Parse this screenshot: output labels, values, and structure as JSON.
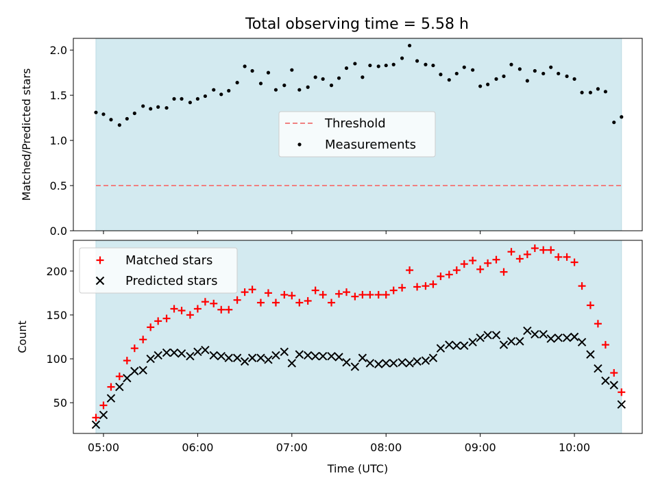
{
  "title": "Total observing time = 5.58 h",
  "colors": {
    "span_fill": "#d3eaf0",
    "threshold": "#f08080",
    "measurement": "#000000",
    "matched": "#ff0000",
    "predicted": "#000000"
  },
  "chart_data": [
    {
      "type": "scatter",
      "ylabel": "Matched/Predicted stars",
      "xlim": [
        4.68,
        10.72
      ],
      "ylim": [
        0,
        2.13
      ],
      "yticks": [
        0.0,
        0.5,
        1.0,
        1.5,
        2.0
      ],
      "ytick_labels": [
        "0.0",
        "0.5",
        "1.0",
        "1.5",
        "2.0"
      ],
      "observing_window": [
        4.92,
        10.5
      ],
      "legend": {
        "placement": "center",
        "entries": [
          "Threshold",
          "Measurements"
        ]
      },
      "threshold": {
        "name": "Threshold",
        "y": 0.5,
        "style": "dashed"
      },
      "series": [
        {
          "name": "Measurements",
          "marker": "dot",
          "x": [
            4.92,
            5.0,
            5.08,
            5.17,
            5.25,
            5.33,
            5.42,
            5.5,
            5.58,
            5.67,
            5.75,
            5.83,
            5.92,
            6.0,
            6.08,
            6.17,
            6.25,
            6.33,
            6.42,
            6.5,
            6.58,
            6.67,
            6.75,
            6.83,
            6.92,
            7.0,
            7.08,
            7.17,
            7.25,
            7.33,
            7.42,
            7.5,
            7.58,
            7.67,
            7.75,
            7.83,
            7.92,
            8.0,
            8.08,
            8.17,
            8.25,
            8.33,
            8.42,
            8.5,
            8.58,
            8.67,
            8.75,
            8.83,
            8.92,
            9.0,
            9.08,
            9.17,
            9.25,
            9.33,
            9.42,
            9.5,
            9.58,
            9.67,
            9.75,
            9.83,
            9.92,
            10.0,
            10.08,
            10.17,
            10.25,
            10.33,
            10.42,
            10.5
          ],
          "values": [
            1.31,
            1.29,
            1.23,
            1.17,
            1.24,
            1.3,
            1.38,
            1.35,
            1.37,
            1.36,
            1.46,
            1.46,
            1.42,
            1.46,
            1.49,
            1.56,
            1.51,
            1.55,
            1.64,
            1.82,
            1.77,
            1.63,
            1.75,
            1.56,
            1.61,
            1.78,
            1.56,
            1.59,
            1.7,
            1.68,
            1.61,
            1.69,
            1.8,
            1.85,
            1.7,
            1.83,
            1.82,
            1.83,
            1.84,
            1.91,
            2.05,
            1.88,
            1.84,
            1.83,
            1.73,
            1.67,
            1.74,
            1.81,
            1.78,
            1.6,
            1.62,
            1.68,
            1.71,
            1.84,
            1.79,
            1.66,
            1.77,
            1.74,
            1.81,
            1.74,
            1.71,
            1.68,
            1.53,
            1.53,
            1.57,
            1.54,
            1.2,
            1.26
          ]
        }
      ]
    },
    {
      "type": "scatter",
      "ylabel": "Count",
      "xlabel": "Time (UTC)",
      "xlim": [
        4.68,
        10.72
      ],
      "ylim": [
        15,
        235
      ],
      "yticks": [
        50,
        100,
        150,
        200
      ],
      "ytick_labels": [
        "50",
        "100",
        "150",
        "200"
      ],
      "xticks": [
        5,
        6,
        7,
        8,
        9,
        10
      ],
      "xtick_labels": [
        "05:00",
        "06:00",
        "07:00",
        "08:00",
        "09:00",
        "10:00"
      ],
      "observing_window": [
        4.92,
        10.5
      ],
      "legend": {
        "placement": "upper left",
        "entries": [
          "Matched stars",
          "Predicted stars"
        ]
      },
      "series": [
        {
          "name": "Matched stars",
          "marker": "plus",
          "x": [
            4.92,
            5.0,
            5.08,
            5.17,
            5.25,
            5.33,
            5.42,
            5.5,
            5.58,
            5.67,
            5.75,
            5.83,
            5.92,
            6.0,
            6.08,
            6.17,
            6.25,
            6.33,
            6.42,
            6.5,
            6.58,
            6.67,
            6.75,
            6.83,
            6.92,
            7.0,
            7.08,
            7.17,
            7.25,
            7.33,
            7.42,
            7.5,
            7.58,
            7.67,
            7.75,
            7.83,
            7.92,
            8.0,
            8.08,
            8.17,
            8.25,
            8.33,
            8.42,
            8.5,
            8.58,
            8.67,
            8.75,
            8.83,
            8.92,
            9.0,
            9.08,
            9.17,
            9.25,
            9.33,
            9.42,
            9.5,
            9.58,
            9.67,
            9.75,
            9.83,
            9.92,
            10.0,
            10.08,
            10.17,
            10.25,
            10.33,
            10.42,
            10.5
          ],
          "values": [
            33,
            47,
            68,
            80,
            98,
            112,
            122,
            136,
            143,
            146,
            157,
            155,
            150,
            157,
            165,
            163,
            156,
            156,
            167,
            176,
            179,
            164,
            175,
            164,
            173,
            172,
            164,
            166,
            178,
            173,
            164,
            174,
            176,
            171,
            173,
            173,
            173,
            173,
            178,
            181,
            201,
            182,
            183,
            185,
            194,
            196,
            201,
            208,
            212,
            202,
            209,
            213,
            199,
            222,
            214,
            219,
            226,
            224,
            224,
            216,
            216,
            210,
            183,
            161,
            140,
            116,
            84,
            62
          ]
        },
        {
          "name": "Predicted stars",
          "marker": "x",
          "x": [
            4.92,
            5.0,
            5.08,
            5.17,
            5.25,
            5.33,
            5.42,
            5.5,
            5.58,
            5.67,
            5.75,
            5.83,
            5.92,
            6.0,
            6.08,
            6.17,
            6.25,
            6.33,
            6.42,
            6.5,
            6.58,
            6.67,
            6.75,
            6.83,
            6.92,
            7.0,
            7.08,
            7.17,
            7.25,
            7.33,
            7.42,
            7.5,
            7.58,
            7.67,
            7.75,
            7.83,
            7.92,
            8.0,
            8.08,
            8.17,
            8.25,
            8.33,
            8.42,
            8.5,
            8.58,
            8.67,
            8.75,
            8.83,
            8.92,
            9.0,
            9.08,
            9.17,
            9.25,
            9.33,
            9.42,
            9.5,
            9.58,
            9.67,
            9.75,
            9.83,
            9.92,
            10.0,
            10.08,
            10.17,
            10.25,
            10.33,
            10.42,
            10.5
          ],
          "values": [
            25,
            36,
            55,
            68,
            78,
            86,
            87,
            100,
            104,
            107,
            107,
            106,
            103,
            108,
            110,
            104,
            103,
            101,
            101,
            97,
            101,
            101,
            99,
            104,
            108,
            95,
            105,
            104,
            103,
            103,
            103,
            102,
            96,
            91,
            101,
            95,
            94,
            95,
            95,
            96,
            95,
            97,
            98,
            101,
            112,
            116,
            115,
            115,
            119,
            124,
            127,
            127,
            116,
            120,
            120,
            132,
            128,
            128,
            123,
            124,
            124,
            125,
            119,
            105,
            89,
            75,
            70,
            48
          ]
        }
      ]
    }
  ]
}
